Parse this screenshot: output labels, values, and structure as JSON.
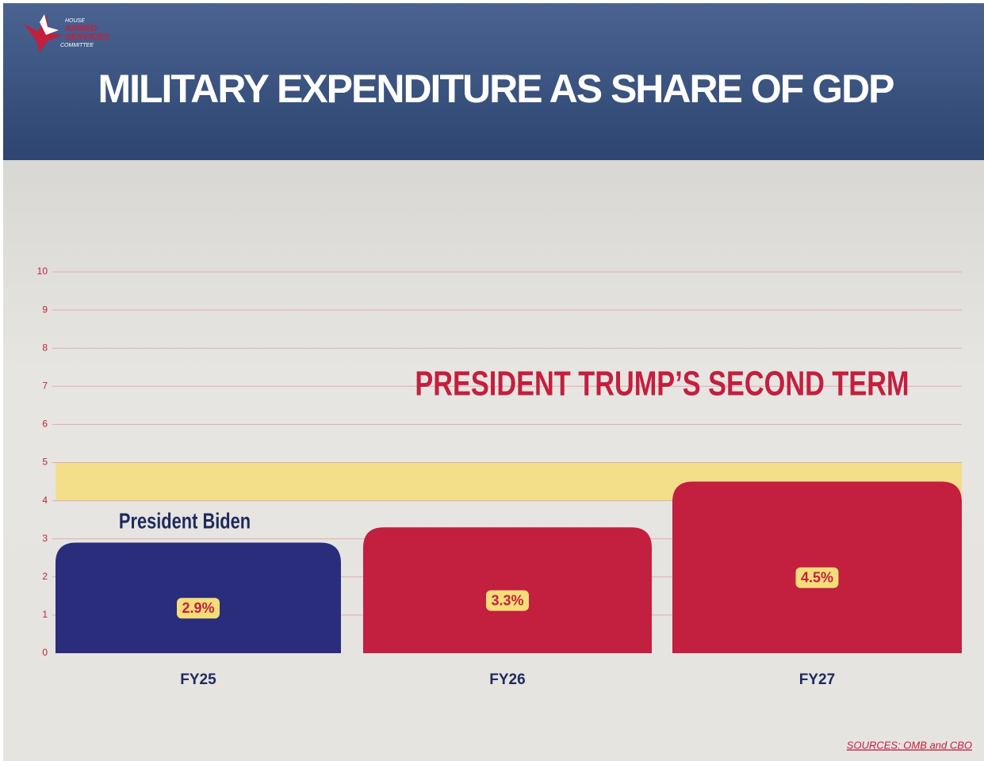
{
  "chart_data": {
    "type": "bar",
    "title": "MILITARY EXPENDITURE AS SHARE OF GDP",
    "logo": [
      "HOUSE",
      "ARMED",
      "SERVICES",
      "COMMITTEE"
    ],
    "categories": [
      "FY25",
      "FY26",
      "FY27"
    ],
    "values": [
      2.9,
      3.3,
      4.5
    ],
    "value_labels": [
      "2.9%",
      "3.3%",
      "4.5%"
    ],
    "colors": [
      "#2a2d7c",
      "#c31f3e",
      "#c31f3e"
    ],
    "ylim": [
      0,
      10
    ],
    "yticks": [
      0,
      1,
      2,
      3,
      4,
      5,
      6,
      7,
      8,
      9,
      10
    ],
    "grid": true,
    "highlight_band": [
      4,
      5
    ],
    "highlight_color": "#f5dd7a",
    "annotations": [
      "PRESIDENT  TRUMP’S SECOND TERM",
      "President Biden"
    ],
    "source": "SOURCES: OMB and CBO"
  }
}
